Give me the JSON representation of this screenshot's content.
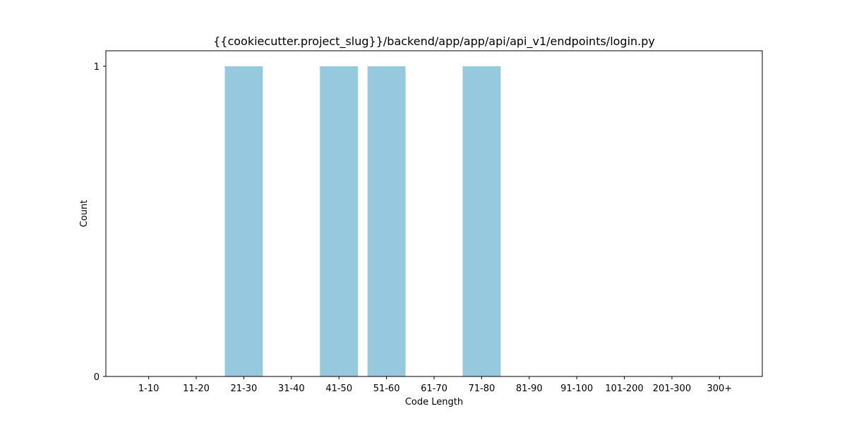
{
  "chart_data": {
    "type": "bar",
    "title": "{{cookiecutter.project_slug}}/backend/app/app/api/api_v1/endpoints/login.py",
    "xlabel": "Code Length",
    "ylabel": "Count",
    "categories": [
      "1-10",
      "11-20",
      "21-30",
      "31-40",
      "41-50",
      "51-60",
      "61-70",
      "71-80",
      "81-90",
      "91-100",
      "101-200",
      "201-300",
      "300+"
    ],
    "values": [
      0,
      0,
      1,
      0,
      1,
      1,
      0,
      1,
      0,
      0,
      0,
      0,
      0
    ],
    "yticks": [
      0,
      1
    ],
    "ylim": [
      0,
      1.05
    ],
    "grid": false,
    "legend": false,
    "bar_color": "#96c9de"
  }
}
